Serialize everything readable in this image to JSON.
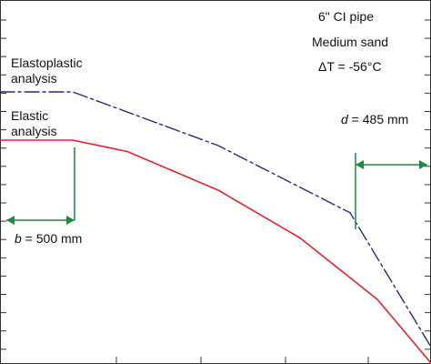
{
  "chart_data": {
    "type": "line",
    "xlabel": "",
    "ylabel": "",
    "grid": false,
    "series": [
      {
        "name": "Elastoplastic analysis",
        "label_lines": [
          "Elastoplastic",
          "analysis"
        ],
        "color": "#1f2f7a",
        "style": "dash-dot",
        "points": [
          [
            0,
            0.0
          ],
          [
            80,
            0.0
          ],
          [
            240,
            -0.2
          ],
          [
            385,
            -0.45
          ],
          [
            474,
            -0.95
          ]
        ]
      },
      {
        "name": "Elastic analysis",
        "label_lines": [
          "Elastic",
          "analysis"
        ],
        "color": "#e3242b",
        "style": "solid",
        "points": [
          [
            0,
            0.0
          ],
          [
            80,
            0.0
          ],
          [
            140,
            -0.05
          ],
          [
            240,
            -0.22
          ],
          [
            330,
            -0.43
          ],
          [
            415,
            -0.7
          ],
          [
            474,
            -0.98
          ]
        ]
      }
    ],
    "annotations": {
      "conditions": [
        "6\" CI pipe",
        "Medium sand",
        "ΔT = -56°C"
      ],
      "b": {
        "symbol": "b",
        "text": " = 500 mm",
        "color": "#1a8a3c"
      },
      "d": {
        "symbol": "d",
        "text": " = 485 mm",
        "color": "#1a8a3c"
      }
    }
  }
}
